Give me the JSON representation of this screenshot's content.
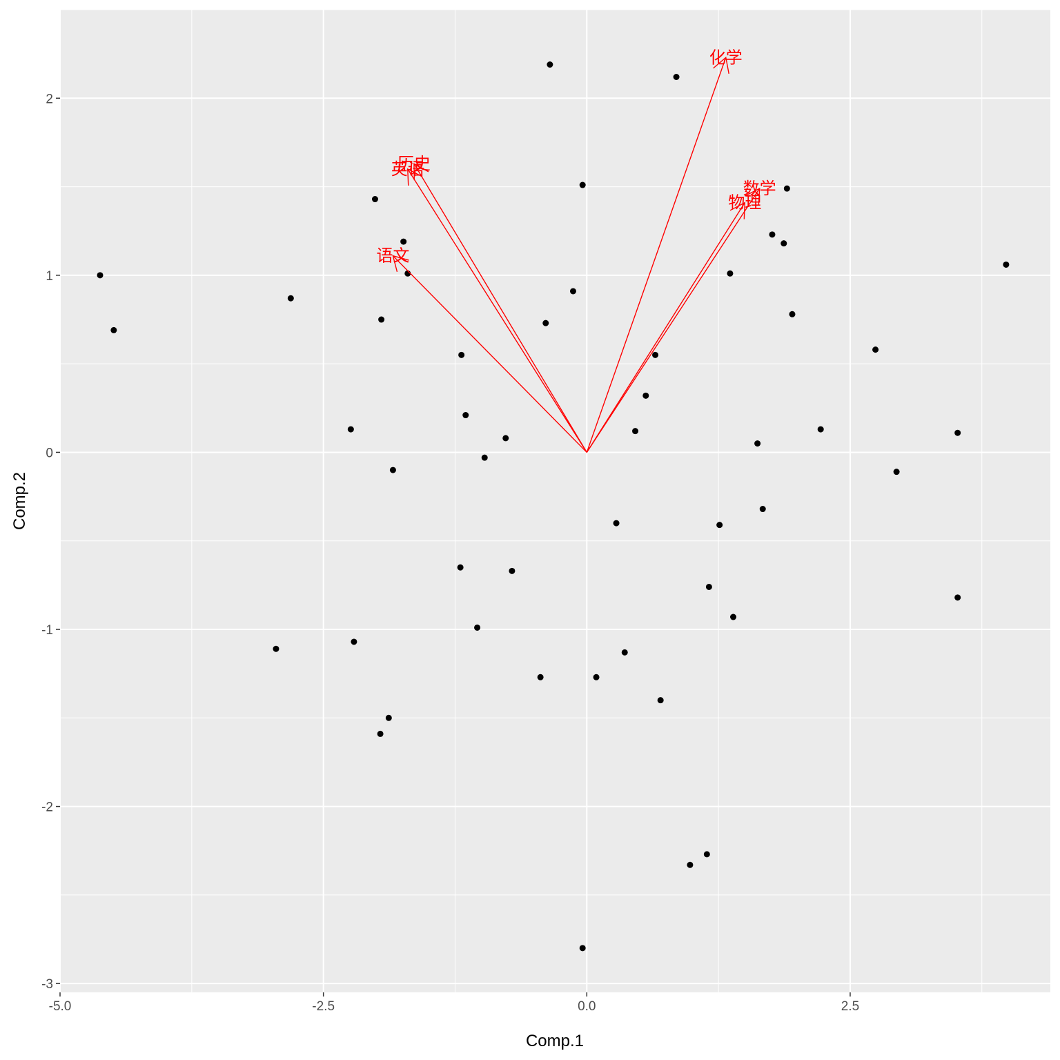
{
  "chart_data": {
    "type": "scatter",
    "title": "",
    "xlabel": "Comp.1",
    "ylabel": "Comp.2",
    "xlim": [
      -5.0,
      4.4
    ],
    "ylim": [
      -3.05,
      2.5
    ],
    "x_ticks": [
      -5.0,
      -2.5,
      0.0,
      2.5
    ],
    "x_tick_labels": [
      "-5.0",
      "-2.5",
      "0.0",
      "2.5"
    ],
    "y_ticks": [
      -3,
      -2,
      -1,
      0,
      1,
      2
    ],
    "y_tick_labels": [
      "-3",
      "-2",
      "-1",
      "0",
      "1",
      "2"
    ],
    "grid": true,
    "panel_color": "#ebebeb",
    "grid_color": "#ffffff",
    "point_color": "#000000",
    "arrow_color": "#ff0000",
    "points": [
      [
        -4.62,
        1.0
      ],
      [
        -4.49,
        0.69
      ],
      [
        -2.81,
        0.87
      ],
      [
        -2.24,
        0.13
      ],
      [
        -2.01,
        1.43
      ],
      [
        -1.95,
        0.75
      ],
      [
        -1.74,
        1.19
      ],
      [
        -1.7,
        1.01
      ],
      [
        -1.84,
        -0.1
      ],
      [
        -2.95,
        -1.11
      ],
      [
        -2.21,
        -1.07
      ],
      [
        -1.88,
        -1.5
      ],
      [
        -1.96,
        -1.59
      ],
      [
        -1.19,
        0.55
      ],
      [
        -1.15,
        0.21
      ],
      [
        -0.97,
        -0.03
      ],
      [
        -0.77,
        0.08
      ],
      [
        -1.2,
        -0.65
      ],
      [
        -0.71,
        -0.67
      ],
      [
        -1.04,
        -0.99
      ],
      [
        -0.35,
        2.19
      ],
      [
        -0.39,
        0.73
      ],
      [
        -0.13,
        0.91
      ],
      [
        -0.04,
        1.51
      ],
      [
        -0.44,
        -1.27
      ],
      [
        -0.04,
        -2.8
      ],
      [
        0.09,
        -1.27
      ],
      [
        0.28,
        -0.4
      ],
      [
        0.46,
        0.12
      ],
      [
        0.56,
        0.32
      ],
      [
        0.65,
        0.55
      ],
      [
        0.36,
        -1.13
      ],
      [
        0.7,
        -1.4
      ],
      [
        0.85,
        2.12
      ],
      [
        0.98,
        -2.33
      ],
      [
        1.14,
        -2.27
      ],
      [
        1.16,
        -0.76
      ],
      [
        1.26,
        -0.41
      ],
      [
        1.36,
        1.01
      ],
      [
        1.39,
        -0.93
      ],
      [
        1.62,
        0.05
      ],
      [
        1.67,
        -0.32
      ],
      [
        1.76,
        1.23
      ],
      [
        1.87,
        1.18
      ],
      [
        1.9,
        1.49
      ],
      [
        1.95,
        0.78
      ],
      [
        2.22,
        0.13
      ],
      [
        2.74,
        0.58
      ],
      [
        2.94,
        -0.11
      ],
      [
        3.52,
        0.11
      ],
      [
        3.52,
        -0.82
      ],
      [
        3.98,
        1.06
      ]
    ],
    "loadings": [
      {
        "label": "语文",
        "x": -1.84,
        "y": 1.11
      },
      {
        "label": "英语",
        "x": -1.7,
        "y": 1.6
      },
      {
        "label": "历史",
        "x": -1.64,
        "y": 1.63
      },
      {
        "label": "化学",
        "x": 1.32,
        "y": 2.23
      },
      {
        "label": "数学",
        "x": 1.64,
        "y": 1.49
      },
      {
        "label": "物理",
        "x": 1.5,
        "y": 1.41
      }
    ]
  }
}
